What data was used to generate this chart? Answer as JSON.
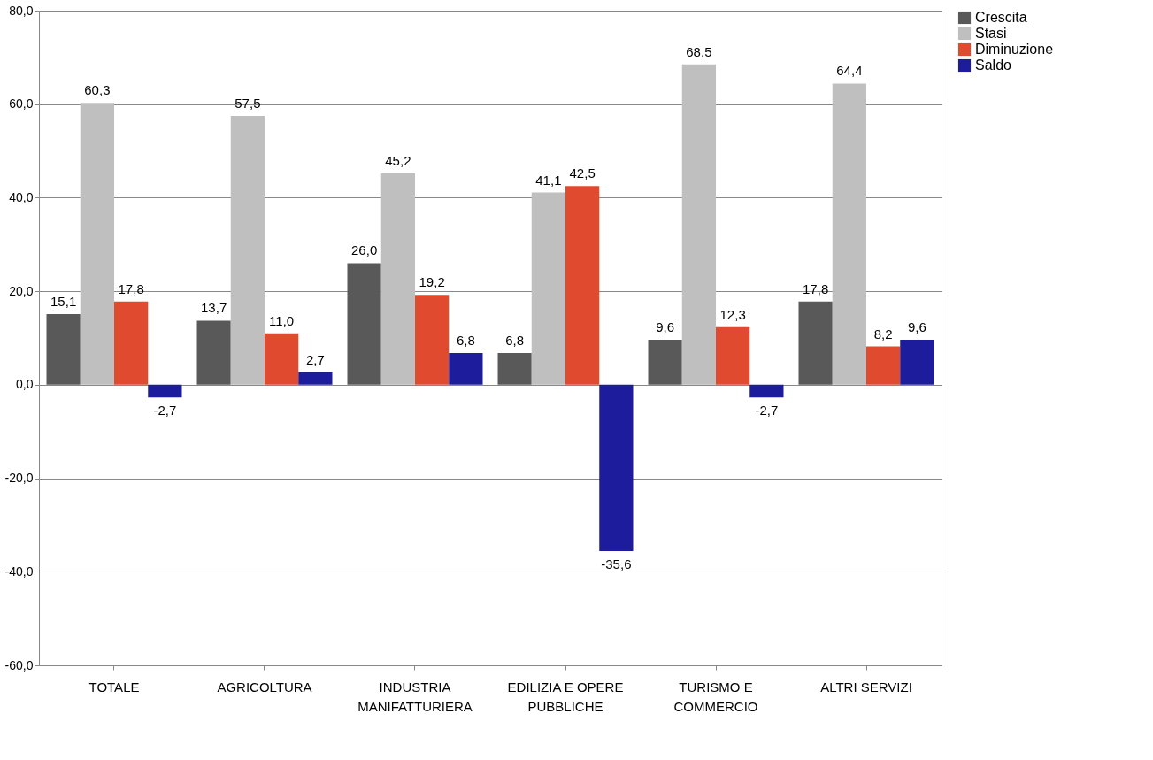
{
  "chart_data": {
    "type": "bar",
    "categories": [
      "TOTALE",
      "AGRICOLTURA",
      "INDUSTRIA MANIFATTURIERA",
      "EDILIZIA E OPERE PUBBLICHE",
      "TURISMO E COMMERCIO",
      "ALTRI SERVIZI"
    ],
    "series": [
      {
        "name": "Crescita",
        "color": "#595959",
        "values": [
          15.1,
          13.7,
          26.0,
          6.8,
          9.6,
          17.8
        ],
        "value_labels": [
          "15,1",
          "13,7",
          "26,0",
          "6,8",
          "9,6",
          "17,8"
        ]
      },
      {
        "name": "Stasi",
        "color": "#bfbfbf",
        "values": [
          60.3,
          57.5,
          45.2,
          41.1,
          68.5,
          64.4
        ],
        "value_labels": [
          "60,3",
          "57,5",
          "45,2",
          "41,1",
          "68,5",
          "64,4"
        ]
      },
      {
        "name": "Diminuzione",
        "color": "#e04a2f",
        "values": [
          17.8,
          11.0,
          19.2,
          42.5,
          12.3,
          8.2
        ],
        "value_labels": [
          "17,8",
          "11,0",
          "19,2",
          "42,5",
          "12,3",
          "8,2"
        ]
      },
      {
        "name": "Saldo",
        "color": "#1c1c9c",
        "values": [
          -2.7,
          2.7,
          6.8,
          -35.6,
          -2.7,
          9.6
        ],
        "value_labels": [
          "-2,7",
          "2,7",
          "6,8",
          "-35,6",
          "-2,7",
          "9,6"
        ]
      }
    ],
    "ylim": [
      -60,
      80
    ],
    "yticks": [
      {
        "value": -60,
        "label": "-60,0"
      },
      {
        "value": -40,
        "label": "-40,0"
      },
      {
        "value": -20,
        "label": "-20,0"
      },
      {
        "value": 0,
        "label": "0,0"
      },
      {
        "value": 20,
        "label": "20,0"
      },
      {
        "value": 40,
        "label": "40,0"
      },
      {
        "value": 60,
        "label": "60,0"
      },
      {
        "value": 80,
        "label": "80,0"
      }
    ],
    "grid": "y",
    "legend": "right"
  }
}
